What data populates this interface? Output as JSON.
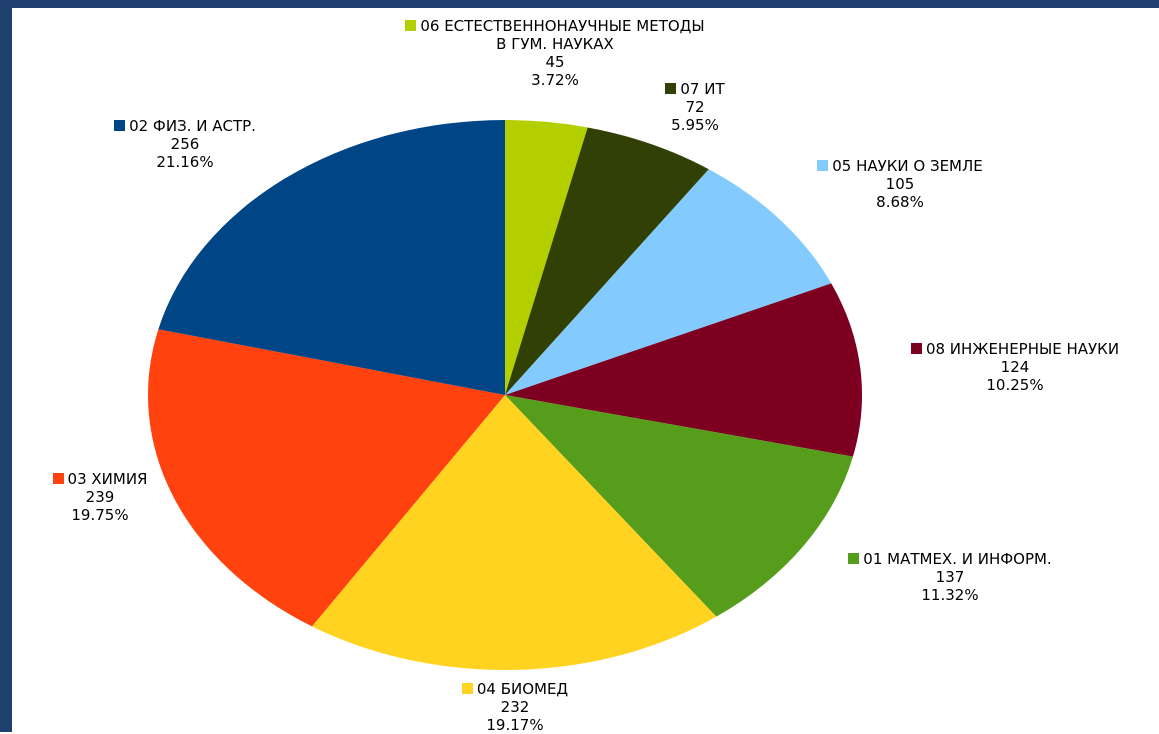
{
  "chart_data": {
    "type": "pie",
    "categories": [
      "06 ЕСТЕСТВЕННОНАУЧНЫЕ МЕТОДЫ В ГУМ. НАУКАХ",
      "07 ИТ",
      "05 НАУКИ О ЗЕМЛЕ",
      "08 ИНЖЕНЕРНЫЕ НАУКИ",
      "01 МАТМЕХ. И ИНФОРМ.",
      "04 БИОМЕД",
      "03 ХИМИЯ",
      "02 ФИЗ. И АСТР."
    ],
    "values": [
      45,
      72,
      105,
      124,
      137,
      232,
      239,
      256
    ],
    "percentages": [
      "3.72%",
      "5.95%",
      "8.68%",
      "10.25%",
      "11.32%",
      "19.17%",
      "19.75%",
      "21.16%"
    ],
    "colors": [
      "#b3cf00",
      "#314004",
      "#83caff",
      "#7e0021",
      "#579d1c",
      "#ffd320",
      "#ff420e",
      "#004586"
    ]
  }
}
